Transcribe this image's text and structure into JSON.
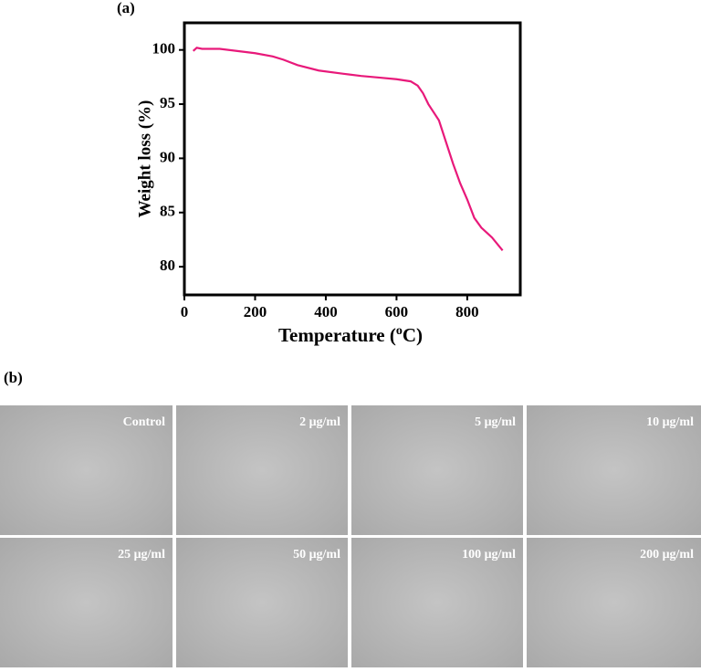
{
  "chart_data": {
    "type": "line",
    "panel_label": "(a)",
    "xlabel": {
      "text": "Temperature (",
      "sup": "o",
      "tail": "C)"
    },
    "ylabel": "Weight loss (%)",
    "x": [
      25,
      35,
      50,
      100,
      150,
      200,
      250,
      280,
      320,
      380,
      450,
      500,
      550,
      600,
      640,
      660,
      675,
      690,
      720,
      740,
      760,
      780,
      800,
      820,
      840,
      870,
      900
    ],
    "series": [
      {
        "color": "#e8197a",
        "values": [
          99.9,
          100.2,
          100.1,
          100.1,
          99.9,
          99.7,
          99.4,
          99.1,
          98.6,
          98.1,
          97.8,
          97.6,
          97.45,
          97.3,
          97.1,
          96.7,
          96.0,
          95.0,
          93.5,
          91.5,
          89.5,
          87.7,
          86.2,
          84.5,
          83.6,
          82.7,
          81.5
        ]
      }
    ],
    "xlim": [
      0,
      950
    ],
    "ylim": [
      77.4,
      102.5
    ],
    "xticks": [
      0,
      200,
      400,
      600,
      800
    ],
    "yticks": [
      80,
      85,
      90,
      95,
      100
    ]
  },
  "images": {
    "panel_label": "(b)",
    "panels": [
      {
        "label": "Control"
      },
      {
        "label": "2 μg/ml"
      },
      {
        "label": "5 μg/ml"
      },
      {
        "label": "10 μg/ml"
      },
      {
        "label": "25 μg/ml"
      },
      {
        "label": "50 μg/ml"
      },
      {
        "label": "100 μg/ml"
      },
      {
        "label": "200 μg/ml"
      }
    ]
  }
}
